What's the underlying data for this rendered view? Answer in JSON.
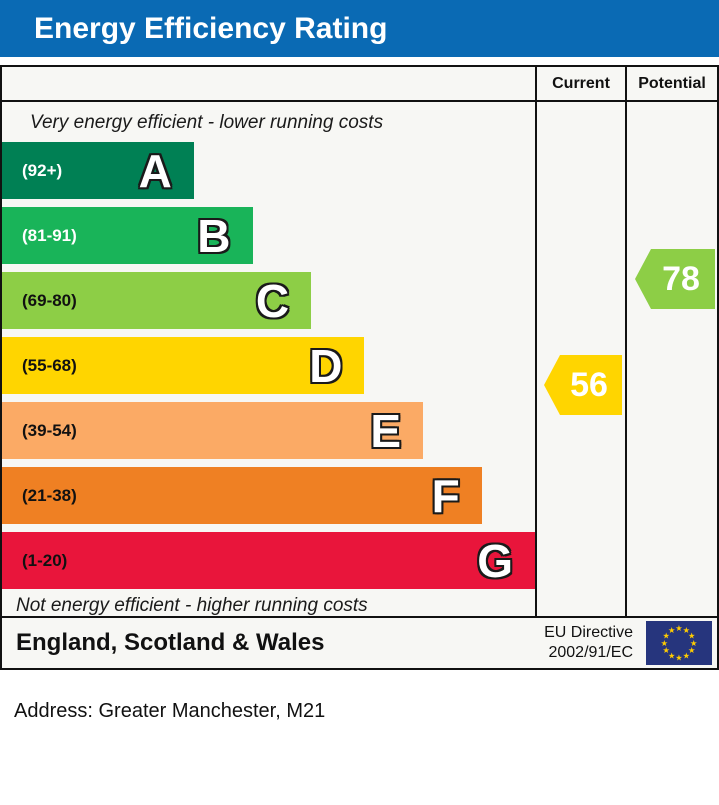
{
  "title": "Energy Efficiency Rating",
  "columns": {
    "current": "Current",
    "potential": "Potential"
  },
  "notes": {
    "top": "Very energy efficient - lower running costs",
    "bottom": "Not energy efficient - higher running costs"
  },
  "bands": [
    {
      "letter": "A",
      "range": "(92+)",
      "color": "#008054",
      "label_color": "#ffffff",
      "width_pct": 36
    },
    {
      "letter": "B",
      "range": "(81-91)",
      "color": "#19b459",
      "label_color": "#ffffff",
      "width_pct": 47
    },
    {
      "letter": "C",
      "range": "(69-80)",
      "color": "#8dce46",
      "label_color": "#111111",
      "width_pct": 58
    },
    {
      "letter": "D",
      "range": "(55-68)",
      "color": "#ffd500",
      "label_color": "#111111",
      "width_pct": 68
    },
    {
      "letter": "E",
      "range": "(39-54)",
      "color": "#fbaa65",
      "label_color": "#111111",
      "width_pct": 79
    },
    {
      "letter": "F",
      "range": "(21-38)",
      "color": "#ef8023",
      "label_color": "#111111",
      "width_pct": 90
    },
    {
      "letter": "G",
      "range": "(1-20)",
      "color": "#e9153b",
      "label_color": "#111111",
      "width_pct": 100
    }
  ],
  "current": {
    "value": "56",
    "color": "#ffd500",
    "band": "D"
  },
  "potential": {
    "value": "78",
    "color": "#8dce46",
    "band": "C"
  },
  "footer": {
    "region": "England, Scotland & Wales",
    "directive_line1": "EU Directive",
    "directive_line2": "2002/91/EC",
    "flag_icon": "eu-flag"
  },
  "address_line": "Address: Greater Manchester, M21",
  "colors": {
    "header_blue": "#0a6ab4",
    "eu_flag_blue": "#26357d",
    "eu_star_yellow": "#ffcc00",
    "border_black": "#111111"
  },
  "chart_data": {
    "type": "bar",
    "orientation": "horizontal",
    "title": "Energy Efficiency Rating",
    "categories": [
      "A (92+)",
      "B (81-91)",
      "C (69-80)",
      "D (55-68)",
      "E (39-54)",
      "F (21-38)",
      "G (1-20)"
    ],
    "values": [
      36,
      47,
      58,
      68,
      79,
      90,
      100
    ],
    "values_unit": "relative bar length, % of scale width",
    "band_colors": [
      "#008054",
      "#19b459",
      "#8dce46",
      "#ffd500",
      "#fbaa65",
      "#ef8023",
      "#e9153b"
    ],
    "markers": [
      {
        "name": "Current",
        "value": 56,
        "band": "D",
        "color": "#ffd500"
      },
      {
        "name": "Potential",
        "value": 78,
        "band": "C",
        "color": "#8dce46"
      }
    ],
    "annotations": [
      "Very energy efficient - lower running costs",
      "Not energy efficient - higher running costs"
    ],
    "legend_position": "none",
    "grid": false
  }
}
